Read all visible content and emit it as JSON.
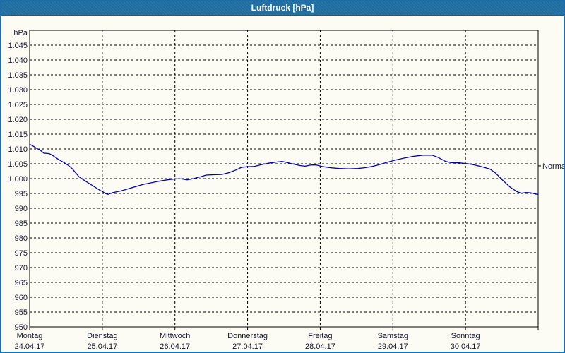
{
  "window": {
    "title": "Luftdruck [hPa]"
  },
  "colors": {
    "titlebar_blue": "#2170a5",
    "window_border_blue": "#1e6da6",
    "background": "#fcfcf4",
    "line_navy": "#0000a8",
    "grid_black": "#000000",
    "label_text": "#14142e"
  },
  "chart_data": {
    "type": "line",
    "title": "Luftdruck [hPa]",
    "ylabel": "hPa",
    "xlabel": "",
    "grid": true,
    "ylim": [
      950,
      1050
    ],
    "ytick_step": 5,
    "ytick_labels": [
      "1.045",
      "1.040",
      "1.035",
      "1.030",
      "1.025",
      "1.020",
      "1.015",
      "1.010",
      "1.005",
      "1.000",
      "995",
      "990",
      "985",
      "980",
      "975",
      "970",
      "965",
      "960",
      "955",
      "950"
    ],
    "x_range_days": [
      0,
      7
    ],
    "categories": [
      {
        "name": "Montag",
        "date": "24.04.17"
      },
      {
        "name": "Dienstag",
        "date": "25.04.17"
      },
      {
        "name": "Mittwoch",
        "date": "26.04.17"
      },
      {
        "name": "Donnerstag",
        "date": "27.04.17"
      },
      {
        "name": "Freitag",
        "date": "28.04.17"
      },
      {
        "name": "Samstag",
        "date": "29.04.17"
      },
      {
        "name": "Sonntag",
        "date": "30.04.17"
      }
    ],
    "normal_marker": {
      "label": "Normal",
      "value": 1004.3
    },
    "legend_position": "right-axis",
    "series": [
      {
        "name": "Luftdruck",
        "unit": "hPa",
        "color": "#0000a8",
        "points": [
          [
            0.0,
            1011.6
          ],
          [
            0.058,
            1010.8
          ],
          [
            0.097,
            1010.2
          ],
          [
            0.146,
            1009.6
          ],
          [
            0.194,
            1008.6
          ],
          [
            0.272,
            1008.4
          ],
          [
            0.33,
            1007.6
          ],
          [
            0.389,
            1006.6
          ],
          [
            0.486,
            1005.2
          ],
          [
            0.535,
            1004.4
          ],
          [
            0.583,
            1003.4
          ],
          [
            0.632,
            1002.0
          ],
          [
            0.681,
            1000.6
          ],
          [
            0.778,
            999.0
          ],
          [
            0.875,
            997.5
          ],
          [
            0.972,
            996.0
          ],
          [
            1.001,
            995.7
          ],
          [
            1.04,
            995.0
          ],
          [
            1.079,
            994.7
          ],
          [
            1.147,
            995.3
          ],
          [
            1.264,
            995.9
          ],
          [
            1.361,
            996.6
          ],
          [
            1.556,
            998.0
          ],
          [
            1.75,
            999.0
          ],
          [
            1.896,
            999.6
          ],
          [
            2.012,
            999.9
          ],
          [
            2.09,
            999.9
          ],
          [
            2.168,
            999.6
          ],
          [
            2.256,
            1000.0
          ],
          [
            2.362,
            1000.7
          ],
          [
            2.43,
            1001.2
          ],
          [
            2.528,
            1001.3
          ],
          [
            2.644,
            1001.4
          ],
          [
            2.742,
            1002.0
          ],
          [
            2.839,
            1002.9
          ],
          [
            2.917,
            1003.8
          ],
          [
            2.994,
            1004.0
          ],
          [
            3.092,
            1004.1
          ],
          [
            3.189,
            1004.7
          ],
          [
            3.286,
            1005.2
          ],
          [
            3.403,
            1005.6
          ],
          [
            3.471,
            1005.8
          ],
          [
            3.529,
            1005.5
          ],
          [
            3.626,
            1004.9
          ],
          [
            3.723,
            1004.4
          ],
          [
            3.791,
            1004.2
          ],
          [
            3.869,
            1004.6
          ],
          [
            3.947,
            1004.6
          ],
          [
            4.025,
            1004.1
          ],
          [
            4.132,
            1003.7
          ],
          [
            4.258,
            1003.4
          ],
          [
            4.394,
            1003.3
          ],
          [
            4.521,
            1003.4
          ],
          [
            4.618,
            1003.7
          ],
          [
            4.715,
            1004.1
          ],
          [
            4.813,
            1004.7
          ],
          [
            4.91,
            1005.4
          ],
          [
            5.026,
            1006.2
          ],
          [
            5.153,
            1006.9
          ],
          [
            5.279,
            1007.5
          ],
          [
            5.415,
            1007.9
          ],
          [
            5.541,
            1007.9
          ],
          [
            5.619,
            1007.2
          ],
          [
            5.716,
            1005.9
          ],
          [
            5.794,
            1005.4
          ],
          [
            5.911,
            1005.3
          ],
          [
            6.037,
            1005.0
          ],
          [
            6.144,
            1004.5
          ],
          [
            6.241,
            1003.9
          ],
          [
            6.339,
            1003.2
          ],
          [
            6.417,
            1001.8
          ],
          [
            6.514,
            999.4
          ],
          [
            6.611,
            997.2
          ],
          [
            6.708,
            995.6
          ],
          [
            6.767,
            995.1
          ],
          [
            6.835,
            995.3
          ],
          [
            6.903,
            995.2
          ],
          [
            6.961,
            994.8
          ],
          [
            7.0,
            994.7
          ]
        ]
      }
    ]
  }
}
